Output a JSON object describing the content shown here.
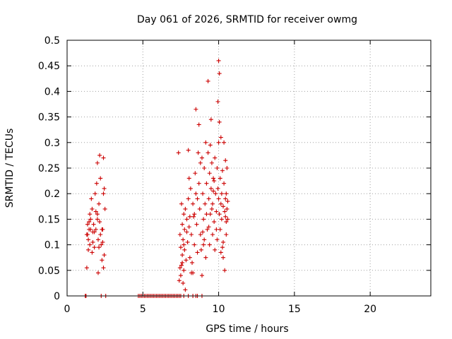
{
  "chart_data": {
    "type": "scatter",
    "title": "Day 061 of 2026, SRMTID for receiver owmg",
    "xlabel": "GPS time / hours",
    "ylabel": "SRMTID / TECUs",
    "xlim": [
      0,
      24
    ],
    "ylim": [
      0,
      0.5
    ],
    "xticks": [
      0,
      5,
      10,
      15,
      20
    ],
    "yticks": [
      0,
      0.05,
      0.1,
      0.15,
      0.2,
      0.25,
      0.3,
      0.35,
      0.4,
      0.45,
      0.5
    ],
    "ytick_labels": [
      "0",
      "0.05",
      "0.1",
      "0.15",
      "0.2",
      "0.25",
      "0.3",
      "0.35",
      "0.4",
      "0.45",
      "0.5"
    ],
    "grid": true,
    "marker": "plus",
    "color": "#cc0000",
    "series": [
      {
        "name": "SRMTID",
        "points": [
          [
            1.2,
            0.0
          ],
          [
            1.25,
            0.0
          ],
          [
            1.3,
            0.12
          ],
          [
            1.3,
            0.055
          ],
          [
            1.35,
            0.14
          ],
          [
            1.4,
            0.11
          ],
          [
            1.45,
            0.13
          ],
          [
            1.5,
            0.1
          ],
          [
            1.55,
            0.15
          ],
          [
            1.6,
            0.19
          ],
          [
            1.65,
            0.085
          ],
          [
            1.7,
            0.125
          ],
          [
            1.75,
            0.14
          ],
          [
            1.8,
            0.095
          ],
          [
            1.85,
            0.2
          ],
          [
            1.9,
            0.13
          ],
          [
            1.95,
            0.22
          ],
          [
            2.0,
            0.26
          ],
          [
            2.0,
            0.16
          ],
          [
            2.05,
            0.045
          ],
          [
            2.1,
            0.18
          ],
          [
            2.15,
            0.275
          ],
          [
            2.15,
            0.145
          ],
          [
            2.2,
            0.12
          ],
          [
            2.25,
            0.0
          ],
          [
            2.3,
            0.13
          ],
          [
            2.3,
            0.07
          ],
          [
            2.35,
            0.105
          ],
          [
            2.4,
            0.27
          ],
          [
            2.4,
            0.055
          ],
          [
            2.45,
            0.21
          ],
          [
            2.5,
            0.17
          ],
          [
            2.55,
            0.0
          ],
          [
            1.4,
            0.09
          ],
          [
            1.5,
            0.16
          ],
          [
            1.7,
            0.105
          ],
          [
            1.9,
            0.165
          ],
          [
            2.0,
            0.15
          ],
          [
            2.1,
            0.095
          ],
          [
            2.2,
            0.23
          ],
          [
            2.35,
            0.13
          ],
          [
            2.45,
            0.08
          ],
          [
            1.55,
            0.13
          ],
          [
            1.65,
            0.17
          ],
          [
            1.8,
            0.125
          ],
          [
            2.05,
            0.11
          ],
          [
            2.25,
            0.1
          ],
          [
            2.4,
            0.2
          ],
          [
            1.35,
            0.12
          ],
          [
            1.45,
            0.145
          ],
          [
            4.7,
            0.0
          ],
          [
            4.8,
            0.0
          ],
          [
            4.9,
            0.0
          ],
          [
            5.0,
            0.0
          ],
          [
            5.1,
            0.0
          ],
          [
            5.2,
            0.0
          ],
          [
            5.3,
            0.0
          ],
          [
            5.4,
            0.0
          ],
          [
            5.5,
            0.0
          ],
          [
            5.6,
            0.0
          ],
          [
            5.7,
            0.0
          ],
          [
            5.8,
            0.0
          ],
          [
            5.9,
            0.0
          ],
          [
            6.0,
            0.0
          ],
          [
            6.1,
            0.0
          ],
          [
            6.2,
            0.0
          ],
          [
            6.3,
            0.0
          ],
          [
            6.4,
            0.0
          ],
          [
            6.5,
            0.0
          ],
          [
            6.6,
            0.0
          ],
          [
            6.7,
            0.0
          ],
          [
            6.8,
            0.0
          ],
          [
            6.9,
            0.0
          ],
          [
            7.0,
            0.0
          ],
          [
            7.1,
            0.0
          ],
          [
            7.2,
            0.0
          ],
          [
            7.3,
            0.0
          ],
          [
            7.4,
            0.0
          ],
          [
            7.5,
            0.0
          ],
          [
            7.7,
            0.0
          ],
          [
            8.0,
            0.0
          ],
          [
            8.3,
            0.0
          ],
          [
            8.5,
            0.0
          ],
          [
            8.6,
            0.0
          ],
          [
            8.9,
            0.0
          ],
          [
            7.35,
            0.28
          ],
          [
            7.4,
            0.03
          ],
          [
            7.45,
            0.12
          ],
          [
            7.5,
            0.04
          ],
          [
            7.5,
            0.095
          ],
          [
            7.55,
            0.18
          ],
          [
            7.55,
            0.06
          ],
          [
            7.6,
            0.14
          ],
          [
            7.6,
            0.08
          ],
          [
            7.65,
            0.11
          ],
          [
            7.65,
            0.025
          ],
          [
            7.7,
            0.16
          ],
          [
            7.7,
            0.05
          ],
          [
            7.75,
            0.13
          ],
          [
            7.75,
            0.09
          ],
          [
            7.8,
            0.012
          ],
          [
            7.8,
            0.17
          ],
          [
            7.85,
            0.07
          ],
          [
            7.9,
            0.15
          ],
          [
            7.95,
            0.105
          ],
          [
            8.0,
            0.285
          ],
          [
            8.0,
            0.19
          ],
          [
            8.05,
            0.23
          ],
          [
            8.05,
            0.135
          ],
          [
            8.1,
            0.075
          ],
          [
            8.15,
            0.21
          ],
          [
            8.2,
            0.12
          ],
          [
            8.25,
            0.065
          ],
          [
            8.3,
            0.18
          ],
          [
            8.35,
            0.155
          ],
          [
            8.4,
            0.1
          ],
          [
            8.45,
            0.24
          ],
          [
            8.5,
            0.365
          ],
          [
            8.5,
            0.2
          ],
          [
            8.55,
            0.14
          ],
          [
            8.6,
            0.085
          ],
          [
            8.65,
            0.28
          ],
          [
            8.7,
            0.335
          ],
          [
            8.7,
            0.22
          ],
          [
            8.75,
            0.17
          ],
          [
            8.8,
            0.12
          ],
          [
            8.85,
            0.09
          ],
          [
            8.9,
            0.27
          ],
          [
            8.9,
            0.04
          ],
          [
            8.95,
            0.2
          ],
          [
            9.0,
            0.15
          ],
          [
            9.05,
            0.25
          ],
          [
            9.05,
            0.11
          ],
          [
            9.1,
            0.18
          ],
          [
            9.15,
            0.3
          ],
          [
            9.15,
            0.075
          ],
          [
            9.2,
            0.22
          ],
          [
            9.25,
            0.13
          ],
          [
            9.3,
            0.28
          ],
          [
            9.3,
            0.42
          ],
          [
            9.35,
            0.19
          ],
          [
            9.4,
            0.1
          ],
          [
            9.4,
            0.24
          ],
          [
            9.45,
            0.16
          ],
          [
            9.5,
            0.21
          ],
          [
            9.5,
            0.345
          ],
          [
            9.55,
            0.26
          ],
          [
            9.6,
            0.12
          ],
          [
            9.6,
            0.18
          ],
          [
            9.65,
            0.23
          ],
          [
            9.7,
            0.145
          ],
          [
            9.75,
            0.27
          ],
          [
            9.75,
            0.09
          ],
          [
            9.8,
            0.2
          ],
          [
            9.85,
            0.165
          ],
          [
            9.9,
            0.25
          ],
          [
            9.9,
            0.11
          ],
          [
            9.95,
            0.38
          ],
          [
            10.0,
            0.46
          ],
          [
            10.0,
            0.3
          ],
          [
            10.0,
            0.19
          ],
          [
            10.05,
            0.435
          ],
          [
            10.05,
            0.34
          ],
          [
            10.1,
            0.23
          ],
          [
            10.1,
            0.13
          ],
          [
            10.15,
            0.31
          ],
          [
            10.15,
            0.085
          ],
          [
            10.2,
            0.2
          ],
          [
            10.2,
            0.15
          ],
          [
            10.25,
            0.245
          ],
          [
            10.3,
            0.175
          ],
          [
            10.3,
            0.105
          ],
          [
            10.35,
            0.22
          ],
          [
            10.4,
            0.165
          ],
          [
            10.4,
            0.05
          ],
          [
            10.45,
            0.265
          ],
          [
            10.45,
            0.19
          ],
          [
            10.5,
            0.145
          ],
          [
            10.5,
            0.2
          ],
          [
            10.55,
            0.25
          ],
          [
            10.55,
            0.17
          ],
          [
            10.6,
            0.15
          ],
          [
            7.6,
            0.065
          ],
          [
            7.9,
            0.125
          ],
          [
            8.1,
            0.155
          ],
          [
            8.3,
            0.045
          ],
          [
            8.6,
            0.19
          ],
          [
            8.8,
            0.26
          ],
          [
            9.0,
            0.1
          ],
          [
            9.2,
            0.16
          ],
          [
            9.45,
            0.295
          ],
          [
            9.65,
            0.205
          ],
          [
            9.85,
            0.13
          ],
          [
            10.05,
            0.16
          ],
          [
            10.25,
            0.095
          ],
          [
            10.35,
            0.3
          ],
          [
            10.5,
            0.12
          ],
          [
            7.45,
            0.055
          ],
          [
            7.7,
            0.1
          ],
          [
            8.2,
            0.045
          ],
          [
            8.4,
            0.16
          ],
          [
            8.95,
            0.125
          ],
          [
            9.35,
            0.135
          ],
          [
            9.55,
            0.17
          ],
          [
            9.7,
            0.225
          ],
          [
            9.95,
            0.21
          ],
          [
            10.15,
            0.18
          ],
          [
            10.3,
            0.075
          ],
          [
            10.45,
            0.155
          ],
          [
            10.6,
            0.185
          ]
        ]
      }
    ]
  }
}
